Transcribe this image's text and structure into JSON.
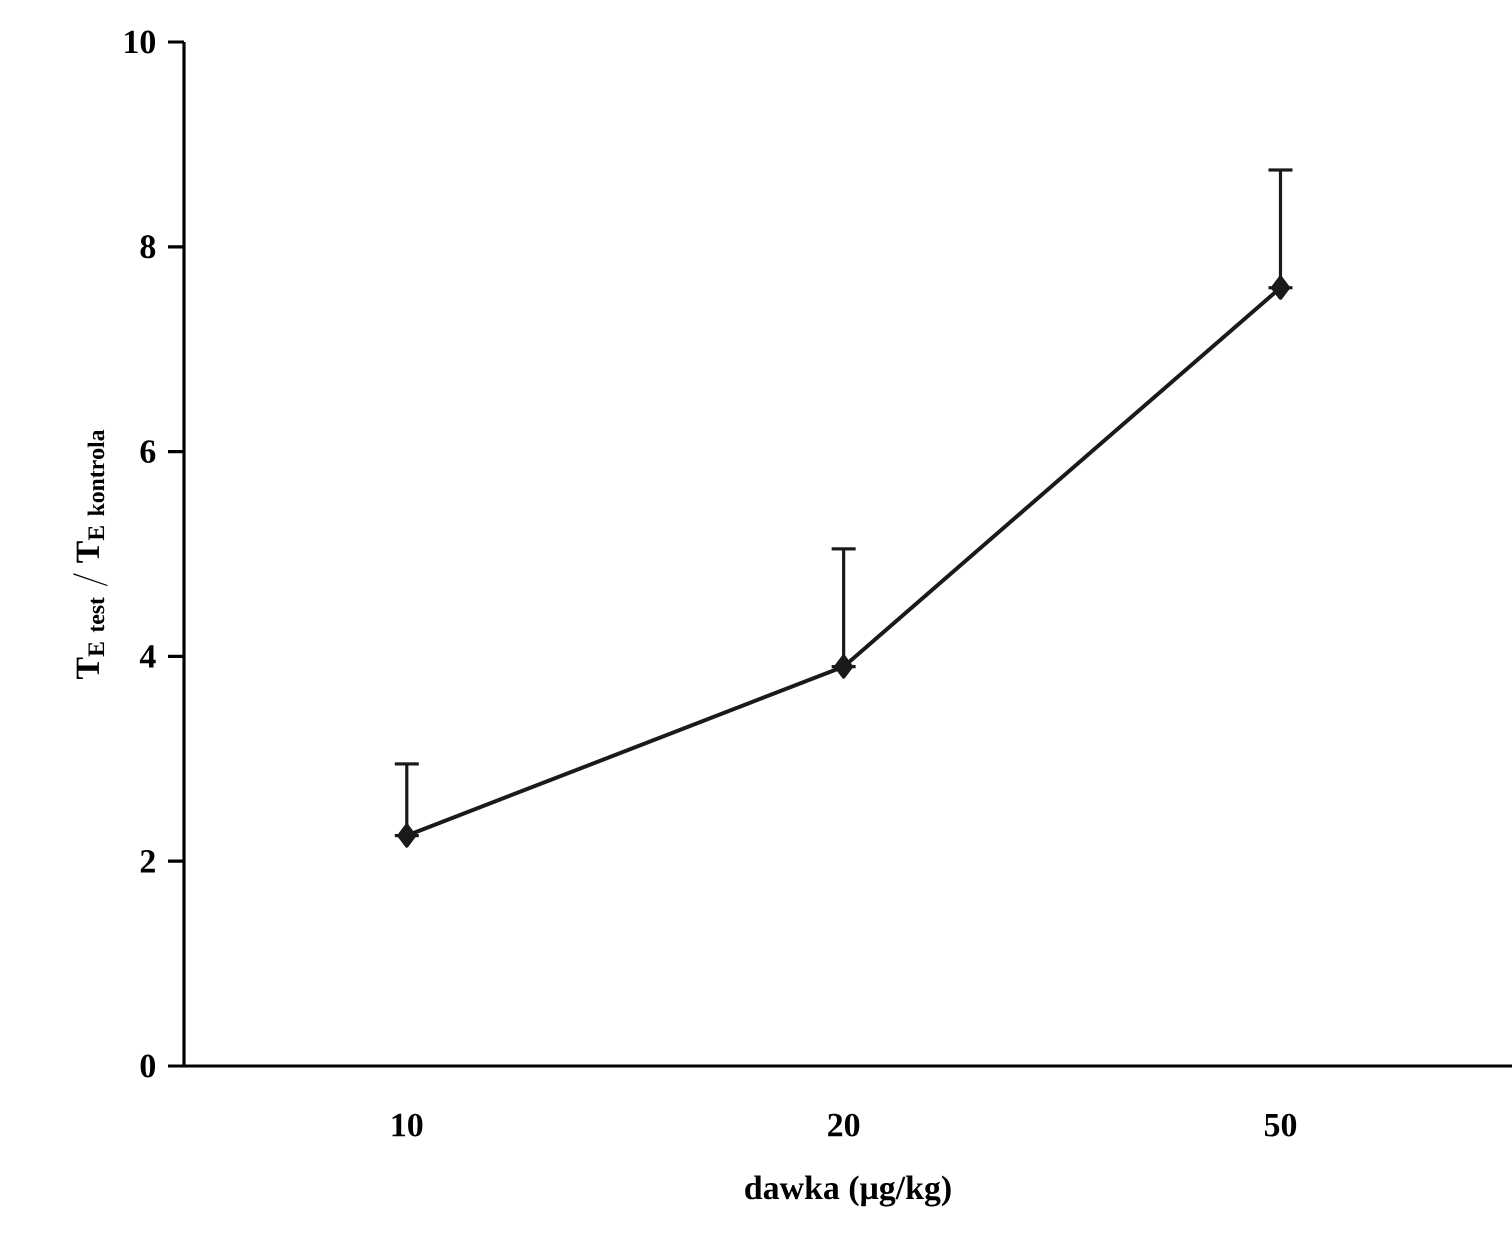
{
  "chart_data": {
    "type": "line",
    "xlabel": "dawka (μg/kg)",
    "ylabel": "\\mathbf{T_{E\\ test}\\ /\\ T_{E\\ kontrola}}",
    "categories": [
      "10",
      "20",
      "50"
    ],
    "values": [
      2.25,
      3.9,
      7.6
    ],
    "errors": [
      [
        2.25,
        2.95
      ],
      [
        3.9,
        5.05
      ],
      [
        7.6,
        8.75
      ]
    ],
    "color": "#1a1a1a",
    "marker": "diamond",
    "line_style": "solid",
    "ylim": [
      0,
      10
    ],
    "yticks": [
      0,
      2,
      4,
      6,
      8,
      10
    ]
  }
}
